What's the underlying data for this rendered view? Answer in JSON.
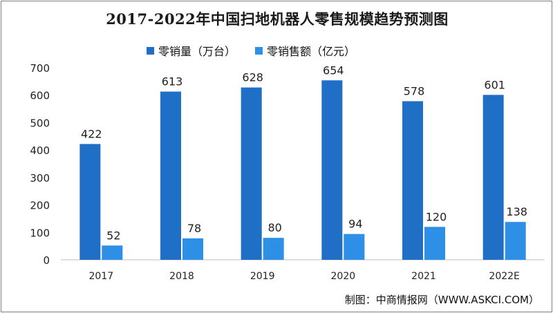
{
  "chart_data": {
    "type": "bar",
    "title": "2017-2022年中国扫地机器人零售规模趋势预测图",
    "categories": [
      "2017",
      "2018",
      "2019",
      "2020",
      "2021",
      "2022E"
    ],
    "series": [
      {
        "name": "零销量（万台）",
        "values": [
          422,
          613,
          628,
          654,
          578,
          601
        ],
        "color": "#1f6fc6"
      },
      {
        "name": "零销售额（亿元）",
        "values": [
          52,
          78,
          80,
          94,
          120,
          138
        ],
        "color": "#2e8fe6"
      }
    ],
    "ylim": [
      0,
      700
    ],
    "yticks": [
      0,
      100,
      200,
      300,
      400,
      500,
      600,
      700
    ],
    "xlabel": "",
    "ylabel": "",
    "grid": false,
    "legend_position": "top"
  },
  "source": "制图：中商情报网（WWW.ASKCI.COM）"
}
